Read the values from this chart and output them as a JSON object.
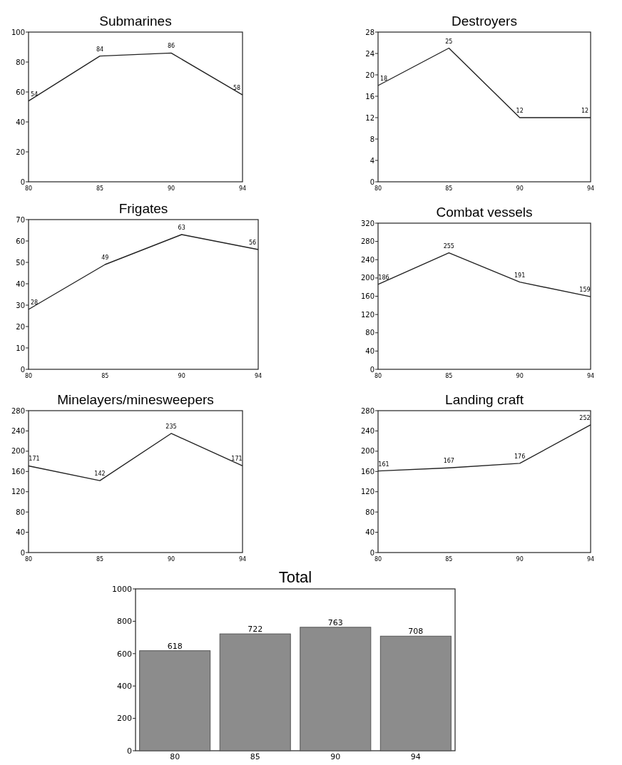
{
  "chart_data": [
    {
      "type": "line",
      "title": "Submarines",
      "categories": [
        "80",
        "85",
        "90",
        "94"
      ],
      "values": [
        54,
        84,
        86,
        58
      ],
      "color": "#222222",
      "ylim": [
        0,
        100
      ],
      "yticks": [
        0,
        20,
        40,
        60,
        80,
        100
      ],
      "data_labels": true
    },
    {
      "type": "line",
      "title": "Destroyers",
      "categories": [
        "80",
        "85",
        "90",
        "94"
      ],
      "values": [
        18,
        25,
        12,
        12
      ],
      "color": "#222222",
      "ylim": [
        0,
        28
      ],
      "yticks": [
        0,
        4,
        8,
        12,
        16,
        20,
        24,
        28
      ],
      "data_labels": true
    },
    {
      "type": "line",
      "title": "Frigates",
      "categories": [
        "80",
        "85",
        "90",
        "94"
      ],
      "values": [
        28,
        49,
        63,
        56
      ],
      "color": "#222222",
      "ylim": [
        0,
        70
      ],
      "yticks": [
        0,
        10,
        20,
        30,
        40,
        50,
        60,
        70
      ],
      "data_labels": true
    },
    {
      "type": "line",
      "title": "Combat vessels",
      "categories": [
        "80",
        "85",
        "90",
        "94"
      ],
      "values": [
        186,
        255,
        191,
        159
      ],
      "color": "#222222",
      "ylim": [
        0,
        320
      ],
      "yticks": [
        0,
        40,
        80,
        120,
        160,
        200,
        240,
        280,
        320
      ],
      "data_labels": true
    },
    {
      "type": "line",
      "title": "Minelayers/minesweepers",
      "categories": [
        "80",
        "85",
        "90",
        "94"
      ],
      "values": [
        171,
        142,
        235,
        171
      ],
      "color": "#222222",
      "ylim": [
        0,
        280
      ],
      "yticks": [
        0,
        40,
        80,
        120,
        160,
        200,
        240,
        280
      ],
      "data_labels": true
    },
    {
      "type": "line",
      "title": "Landing craft",
      "categories": [
        "80",
        "85",
        "90",
        "94"
      ],
      "values": [
        161,
        167,
        176,
        252
      ],
      "color": "#222222",
      "ylim": [
        0,
        280
      ],
      "yticks": [
        0,
        40,
        80,
        120,
        160,
        200,
        240,
        280
      ],
      "data_labels": true
    },
    {
      "type": "bar",
      "title": "Total",
      "categories": [
        "80",
        "85",
        "90",
        "94"
      ],
      "values": [
        618,
        722,
        763,
        708
      ],
      "color": "#8c8c8c",
      "ylim": [
        0,
        1000
      ],
      "yticks": [
        0,
        200,
        400,
        600,
        800,
        1000
      ],
      "data_labels": true
    }
  ]
}
